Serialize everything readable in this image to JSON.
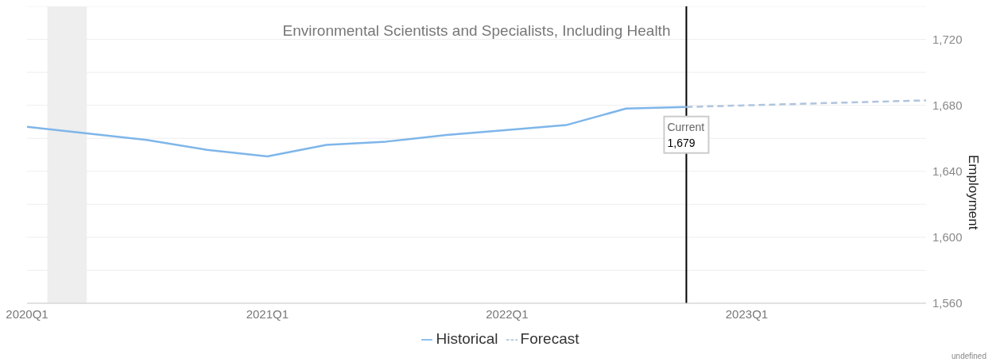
{
  "chart_data": {
    "type": "line",
    "title": "Environmental Scientists and Specialists, Including Health",
    "ylabel": "Employment",
    "x": [
      "2020-01",
      "2020-04",
      "2020-07",
      "2020-10",
      "2021-01",
      "2021-04",
      "2021-07",
      "2021-10",
      "2022-01",
      "2022-04",
      "2022-07",
      "2022-10"
    ],
    "series": [
      {
        "name": "Historical",
        "color": "#7eb6ea",
        "line_style": "solid",
        "values": [
          1667,
          1663,
          1659,
          1653,
          1649,
          1656,
          1658,
          1662,
          1665,
          1668,
          1678,
          1679
        ]
      },
      {
        "name": "Forecast",
        "color": "#b0c4de",
        "line_style": "dashed",
        "x": [
          "2022-10",
          "2023-01",
          "2023-04",
          "2023-07",
          "2023-10"
        ],
        "values": [
          1679,
          1680,
          1681,
          1682,
          1683
        ]
      }
    ],
    "xlim": [
      "2020-01",
      "2023-10"
    ],
    "xticks": [
      {
        "value": "2020-01",
        "label": "2020Q1"
      },
      {
        "value": "2021-01",
        "label": "2021Q1"
      },
      {
        "value": "2022-01",
        "label": "2022Q1"
      },
      {
        "value": "2023-01",
        "label": "2023Q1"
      }
    ],
    "ylim": [
      1560,
      1740
    ],
    "yticks": [
      {
        "value": 1560,
        "label": "1,560"
      },
      {
        "value": 1580,
        "label": null
      },
      {
        "value": 1600,
        "label": "1,600"
      },
      {
        "value": 1620,
        "label": null
      },
      {
        "value": 1640,
        "label": "1,640"
      },
      {
        "value": 1660,
        "label": null
      },
      {
        "value": 1680,
        "label": "1,680"
      },
      {
        "value": 1700,
        "label": null
      },
      {
        "value": 1720,
        "label": "1,720"
      }
    ],
    "grid": "y",
    "legend": "bottom",
    "marker": "none",
    "bands": [
      {
        "axis": "x",
        "from": "2020-02",
        "to": "2020-04",
        "color": "#eeeeee"
      }
    ],
    "ref_lines": [
      {
        "axis": "x",
        "value": "2022-10",
        "label": "Current",
        "color": "#000000"
      }
    ],
    "annotations": [
      {
        "text": "1,679",
        "x": "2022-10",
        "y": 1679
      },
      "undefined"
    ]
  }
}
